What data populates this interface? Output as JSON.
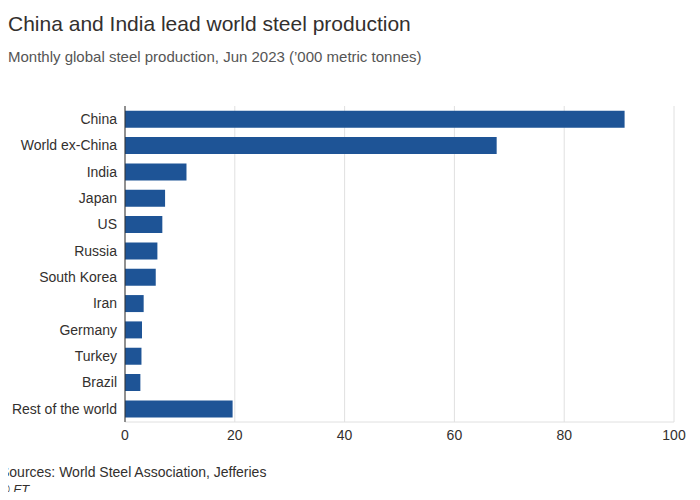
{
  "chart_data": {
    "type": "bar",
    "orientation": "horizontal",
    "title": "China and India lead world steel production",
    "subtitle": "Monthly global steel production, Jun 2023 (’000 metric tonnes)",
    "source": "Sources: World Steel Association, Jefferies",
    "credit": "© FT",
    "categories": [
      "China",
      "World ex-China",
      "India",
      "Japan",
      "US",
      "Russia",
      "South Korea",
      "Iran",
      "Germany",
      "Turkey",
      "Brazil",
      "Rest of the world"
    ],
    "values": [
      91,
      67.7,
      11.2,
      7.3,
      6.8,
      5.9,
      5.6,
      3.4,
      3.1,
      3.0,
      2.8,
      19.6
    ],
    "color": "#1e5496",
    "xlim": [
      0,
      100
    ],
    "xticks": [
      0,
      20,
      40,
      60,
      80,
      100
    ],
    "grid": true
  }
}
